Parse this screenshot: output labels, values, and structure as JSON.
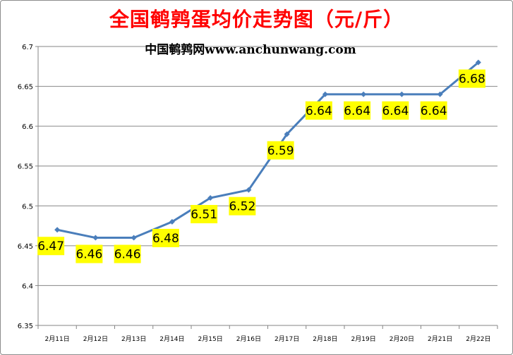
{
  "chart_data": {
    "type": "line",
    "title": "全国鹌鹑蛋均价走势图（元/斤）",
    "subtitle": "中国鹌鹑网www.anchunwang.com",
    "categories": [
      "2月11日",
      "2月12日",
      "2月13日",
      "2月14日",
      "2月15日",
      "2月16日",
      "2月17日",
      "2月18日",
      "2月19日",
      "2月20日",
      "2月21日",
      "2月22日"
    ],
    "values": [
      6.47,
      6.46,
      6.46,
      6.48,
      6.51,
      6.52,
      6.59,
      6.64,
      6.64,
      6.64,
      6.64,
      6.68
    ],
    "data_labels": [
      "6.47",
      "6.46",
      "6.46",
      "6.48",
      "6.51",
      "6.52",
      "6.59",
      "6.64",
      "6.64",
      "6.64",
      "6.64",
      "6.68"
    ],
    "ylim": [
      6.35,
      6.7
    ],
    "yticks": [
      6.35,
      6.4,
      6.45,
      6.5,
      6.55,
      6.6,
      6.65,
      6.7
    ],
    "ytick_labels": [
      "6.35",
      "6.4",
      "6.45",
      "6.5",
      "6.55",
      "6.6",
      "6.65",
      "6.7"
    ],
    "grid": true,
    "colors": {
      "title": "#ff0000",
      "line": "#4a7ebb",
      "label_background": "#ffff00",
      "grid": "#868686"
    }
  }
}
